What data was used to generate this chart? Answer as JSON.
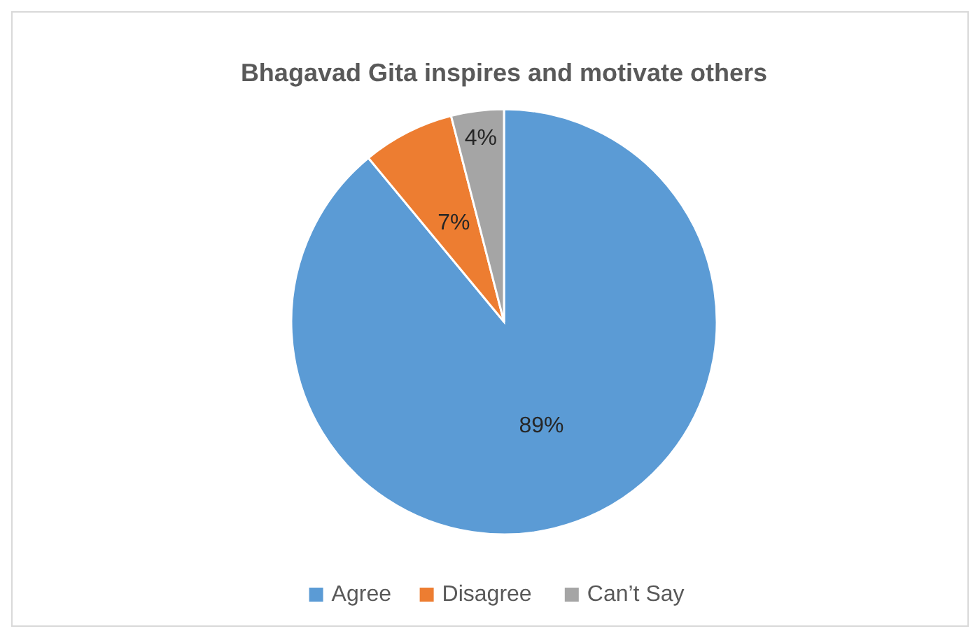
{
  "chart_data": {
    "type": "pie",
    "title": "Bhagavad Gita inspires and motivate others",
    "categories": [
      "Agree",
      "Disagree",
      "Can’t Say"
    ],
    "values": [
      89,
      7,
      4
    ],
    "colors": [
      "#5b9bd5",
      "#ed7d31",
      "#a5a5a5"
    ],
    "value_labels": [
      "89%",
      "7%",
      "4%"
    ],
    "legend": "bottom"
  }
}
